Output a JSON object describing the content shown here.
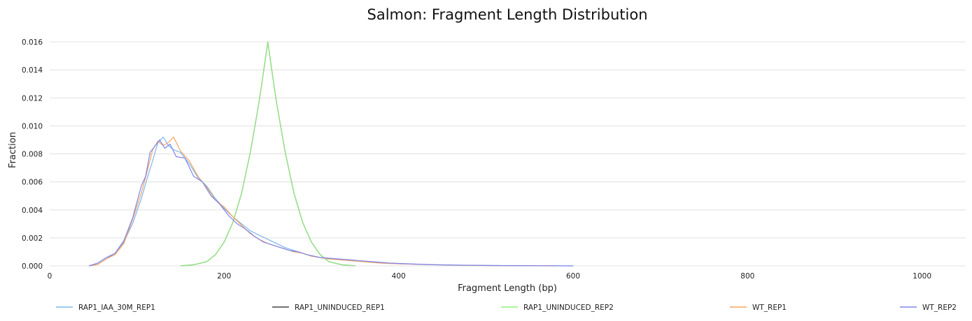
{
  "chart_data": {
    "type": "line",
    "title": "Salmon: Fragment Length Distribution",
    "xlabel": "Fragment Length (bp)",
    "ylabel": "Fraction",
    "xlim": [
      0,
      1050
    ],
    "ylim": [
      0,
      0.016
    ],
    "xticks": [
      0,
      200,
      400,
      600,
      800,
      1000
    ],
    "xtick_labels": [
      "0",
      "200",
      "400",
      "600",
      "800",
      "1000"
    ],
    "yticks": [
      0,
      0.002,
      0.004,
      0.006,
      0.008,
      0.01,
      0.012,
      0.014,
      0.016
    ],
    "ytick_labels": [
      "0.000",
      "0.002",
      "0.004",
      "0.006",
      "0.008",
      "0.010",
      "0.012",
      "0.014",
      "0.016"
    ],
    "grid": true,
    "legend_position": "bottom",
    "series": [
      {
        "name": "RAP1_IAA_30M_REP1",
        "color": "#7cb5ec",
        "points": [
          [
            45,
            0
          ],
          [
            55,
            0.0001
          ],
          [
            65,
            0.0005
          ],
          [
            75,
            0.0009
          ],
          [
            85,
            0.0017
          ],
          [
            95,
            0.003
          ],
          [
            105,
            0.0048
          ],
          [
            112,
            0.0063
          ],
          [
            118,
            0.0075
          ],
          [
            124,
            0.0088
          ],
          [
            130,
            0.0092
          ],
          [
            136,
            0.0086
          ],
          [
            142,
            0.0083
          ],
          [
            150,
            0.0081
          ],
          [
            160,
            0.0073
          ],
          [
            170,
            0.0063
          ],
          [
            180,
            0.0057
          ],
          [
            190,
            0.0048
          ],
          [
            200,
            0.0041
          ],
          [
            210,
            0.0035
          ],
          [
            220,
            0.003
          ],
          [
            230,
            0.0025
          ],
          [
            240,
            0.0022
          ],
          [
            250,
            0.0019
          ],
          [
            260,
            0.0016
          ],
          [
            270,
            0.0013
          ],
          [
            280,
            0.0011
          ],
          [
            290,
            0.0009
          ],
          [
            300,
            0.0007
          ],
          [
            320,
            0.0005
          ],
          [
            340,
            0.0004
          ],
          [
            360,
            0.0003
          ],
          [
            380,
            0.0002
          ],
          [
            400,
            0.00015
          ],
          [
            430,
            0.0001
          ],
          [
            460,
            6e-05
          ],
          [
            500,
            3e-05
          ],
          [
            540,
            2e-05
          ],
          [
            580,
            1e-05
          ],
          [
            600,
            0
          ]
        ]
      },
      {
        "name": "RAP1_UNINDUCED_REP1",
        "color": "#434348",
        "points": [
          [
            150,
            0
          ],
          [
            165,
            8e-05
          ],
          [
            180,
            0.0003
          ],
          [
            190,
            0.0008
          ],
          [
            200,
            0.0017
          ],
          [
            210,
            0.0031
          ],
          [
            220,
            0.0052
          ],
          [
            230,
            0.0081
          ],
          [
            240,
            0.0117
          ],
          [
            245,
            0.0138
          ],
          [
            250,
            0.016
          ],
          [
            255,
            0.0138
          ],
          [
            260,
            0.0117
          ],
          [
            270,
            0.0081
          ],
          [
            280,
            0.0052
          ],
          [
            290,
            0.0031
          ],
          [
            300,
            0.0017
          ],
          [
            310,
            0.0008
          ],
          [
            320,
            0.0003
          ],
          [
            335,
            8e-05
          ],
          [
            350,
            0
          ]
        ]
      },
      {
        "name": "RAP1_UNINDUCED_REP2",
        "color": "#90ed7d",
        "points": [
          [
            150,
            0
          ],
          [
            165,
            8e-05
          ],
          [
            180,
            0.0003
          ],
          [
            190,
            0.0008
          ],
          [
            200,
            0.0017
          ],
          [
            210,
            0.0031
          ],
          [
            220,
            0.0052
          ],
          [
            230,
            0.0081
          ],
          [
            240,
            0.0117
          ],
          [
            245,
            0.0138
          ],
          [
            250,
            0.016
          ],
          [
            255,
            0.0138
          ],
          [
            260,
            0.0117
          ],
          [
            270,
            0.0081
          ],
          [
            280,
            0.0052
          ],
          [
            290,
            0.0031
          ],
          [
            300,
            0.0017
          ],
          [
            310,
            0.0008
          ],
          [
            320,
            0.0003
          ],
          [
            335,
            8e-05
          ],
          [
            350,
            0
          ]
        ]
      },
      {
        "name": "WT_REP1",
        "color": "#f7a35c",
        "points": [
          [
            45,
            0
          ],
          [
            55,
            0.0001
          ],
          [
            65,
            0.0005
          ],
          [
            75,
            0.0008
          ],
          [
            85,
            0.0016
          ],
          [
            95,
            0.0033
          ],
          [
            105,
            0.0052
          ],
          [
            112,
            0.0068
          ],
          [
            118,
            0.0083
          ],
          [
            124,
            0.0089
          ],
          [
            130,
            0.0086
          ],
          [
            136,
            0.0088
          ],
          [
            142,
            0.0092
          ],
          [
            150,
            0.0082
          ],
          [
            160,
            0.0075
          ],
          [
            170,
            0.0064
          ],
          [
            180,
            0.0056
          ],
          [
            190,
            0.0047
          ],
          [
            200,
            0.0042
          ],
          [
            210,
            0.0035
          ],
          [
            220,
            0.0029
          ],
          [
            230,
            0.0023
          ],
          [
            240,
            0.0019
          ],
          [
            250,
            0.0016
          ],
          [
            260,
            0.0014
          ],
          [
            270,
            0.0012
          ],
          [
            280,
            0.001
          ],
          [
            290,
            0.0009
          ],
          [
            300,
            0.0007
          ],
          [
            320,
            0.0005
          ],
          [
            340,
            0.0004
          ],
          [
            360,
            0.0003
          ],
          [
            380,
            0.0002
          ],
          [
            400,
            0.00015
          ],
          [
            430,
            0.0001
          ],
          [
            460,
            5e-05
          ],
          [
            500,
            2e-05
          ],
          [
            540,
            1e-05
          ],
          [
            580,
            0
          ]
        ]
      },
      {
        "name": "WT_REP2",
        "color": "#8085e9",
        "points": [
          [
            45,
            0
          ],
          [
            55,
            0.0002
          ],
          [
            65,
            0.0006
          ],
          [
            75,
            0.0009
          ],
          [
            85,
            0.0018
          ],
          [
            95,
            0.0034
          ],
          [
            105,
            0.0057
          ],
          [
            110,
            0.0064
          ],
          [
            115,
            0.0081
          ],
          [
            120,
            0.0085
          ],
          [
            126,
            0.009
          ],
          [
            132,
            0.0084
          ],
          [
            138,
            0.0087
          ],
          [
            145,
            0.0078
          ],
          [
            155,
            0.0077
          ],
          [
            165,
            0.0064
          ],
          [
            175,
            0.006
          ],
          [
            185,
            0.005
          ],
          [
            195,
            0.0044
          ],
          [
            205,
            0.0036
          ],
          [
            215,
            0.003
          ],
          [
            225,
            0.0026
          ],
          [
            235,
            0.0021
          ],
          [
            245,
            0.0017
          ],
          [
            255,
            0.0015
          ],
          [
            265,
            0.0013
          ],
          [
            275,
            0.0011
          ],
          [
            285,
            0.001
          ],
          [
            295,
            0.0008
          ],
          [
            310,
            0.0006
          ],
          [
            330,
            0.0005
          ],
          [
            350,
            0.0004
          ],
          [
            370,
            0.0003
          ],
          [
            390,
            0.0002
          ],
          [
            410,
            0.00015
          ],
          [
            440,
            8e-05
          ],
          [
            470,
            5e-05
          ],
          [
            520,
            2e-05
          ],
          [
            560,
            1e-05
          ],
          [
            600,
            0
          ]
        ]
      }
    ]
  }
}
